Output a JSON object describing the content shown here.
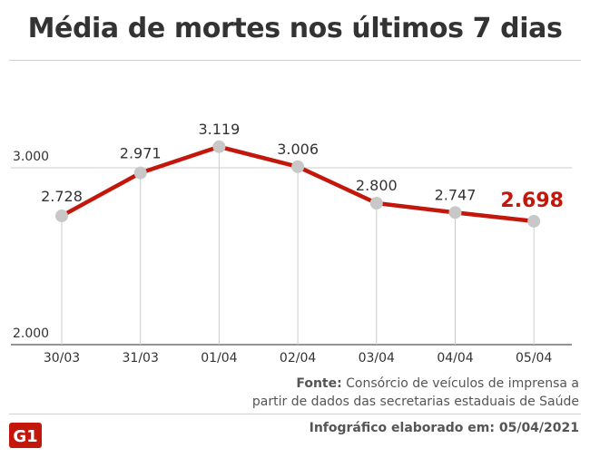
{
  "title": "Média de mortes nos últimos 7 dias",
  "colors": {
    "line": "#c4170c",
    "marker": "#c8c8c8",
    "highlight_label": "#c4170c",
    "text": "#333333",
    "grid": "#cccccc",
    "logo": "#c4170c"
  },
  "source": {
    "label": "Fonte:",
    "text_line1": "Consórcio de veículos de imprensa a",
    "text_line2": "partir de dados das secretarias estaduais de Saúde"
  },
  "credit": {
    "label": "Infográfico elaborado em:",
    "date": "05/04/2021"
  },
  "logo": {
    "text": "G1",
    "icon": "g1-logo"
  },
  "chart_data": {
    "type": "line",
    "title": "Média de mortes nos últimos 7 dias",
    "categories": [
      "30/03",
      "31/03",
      "01/04",
      "02/04",
      "03/04",
      "04/04",
      "05/04"
    ],
    "values": [
      2728,
      2971,
      3119,
      3006,
      2800,
      2747,
      2698
    ],
    "value_labels": [
      "2.728",
      "2.971",
      "3.119",
      "3.006",
      "2.800",
      "2.747",
      "2.698"
    ],
    "y_ticks": [
      2000,
      3000
    ],
    "y_tick_labels": [
      "2.000",
      "3.000"
    ],
    "ylim": [
      2000,
      3000
    ],
    "highlight_last": true,
    "grid": "y-major",
    "legend": "none"
  }
}
